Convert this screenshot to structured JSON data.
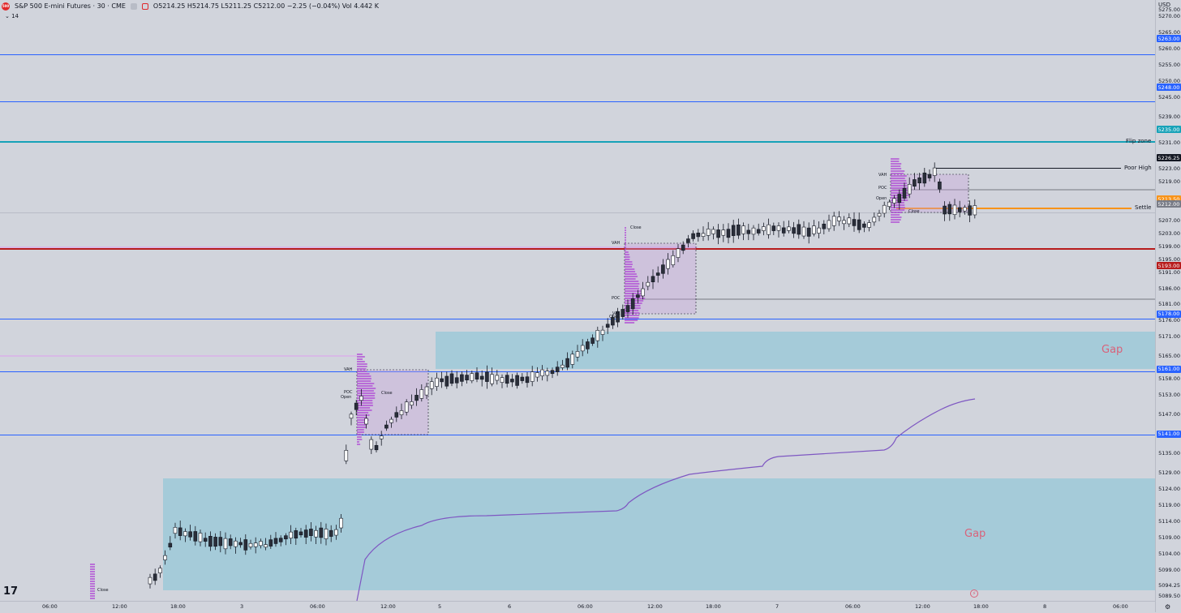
{
  "header": {
    "logo_text": "500",
    "symbol": "S&P 500 E-mini Futures · 30 · CME",
    "ohlc": "O5214.25  H5214.75  L5211.25  C5212.00  −2.25 (−0.04%)  Vol 4.442 K",
    "indicator": "⌄ 14"
  },
  "price_axis": {
    "currency": "USD",
    "ticks": [
      "5275.00",
      "5270.00",
      "5265.00",
      "5260.00",
      "5255.00",
      "5250.00",
      "5245.00",
      "5239.00",
      "5235.00",
      "5231.00",
      "5223.00",
      "5219.00",
      "5207.00",
      "5203.00",
      "5199.00",
      "5195.00",
      "5191.00",
      "5186.00",
      "5181.00",
      "5176.00",
      "5171.00",
      "5165.00",
      "5158.00",
      "5153.00",
      "5147.00",
      "5141.00",
      "5135.00",
      "5129.00",
      "5124.00",
      "5119.00",
      "5114.00",
      "5109.00",
      "5104.00",
      "5099.00",
      "5094.25",
      "5089.50"
    ],
    "tags": [
      {
        "text": "5263.00",
        "color": "#2962ff"
      },
      {
        "text": "5248.00",
        "color": "#2962ff"
      },
      {
        "text": "5235.00",
        "color": "#17a2b8"
      },
      {
        "text": "5226.25",
        "color": "#131722"
      },
      {
        "text": "5213.50",
        "color": "#f7931a"
      },
      {
        "text": "5212.00",
        "color": "#787b86"
      },
      {
        "text": "5193.00",
        "color": "#b71c1c"
      },
      {
        "text": "5178.00",
        "color": "#2962ff"
      },
      {
        "text": "5161.00",
        "color": "#2962ff"
      },
      {
        "text": "5141.00",
        "color": "#2962ff"
      }
    ]
  },
  "time_axis": {
    "ticks": [
      "06:00",
      "12:00",
      "18:00",
      "3",
      "06:00",
      "12:00",
      "5",
      "6",
      "06:00",
      "12:00",
      "18:00",
      "7",
      "06:00",
      "12:00",
      "18:00",
      "8",
      "06:00"
    ]
  },
  "levels": {
    "flip_zone": "Flip zone",
    "poor_high": "Poor High",
    "settle": "Settle"
  },
  "profile_labels": {
    "vah": "VAH",
    "poc": "POC",
    "val": "VAL",
    "open": "Open",
    "close": "Close"
  },
  "gaps": {
    "upper": "Gap",
    "lower": "Gap"
  },
  "colors": {
    "background": "#d1d4dc",
    "level_blue": "#2962ff",
    "flip_zone": "#17a2b8",
    "red_level": "#b71c1c",
    "settle": "#f7931a",
    "profile": "#9c27b0",
    "vwap": "#7e57c2",
    "gap_fill": "#82c3d7"
  },
  "icons": {
    "tradingview_logo": "tv-logo-icon",
    "settings": "gear-icon",
    "alert": "bolt-icon"
  },
  "chart_data": {
    "type": "line",
    "title": "",
    "xlabel": "",
    "ylabel": "",
    "ylim": [
      5089.5,
      5275
    ],
    "x": [
      "2",
      "3",
      "4",
      "5",
      "6",
      "7"
    ],
    "series": [
      {
        "values": [
          5105,
          5109,
          5162,
          5163,
          5195,
          5212
        ]
      }
    ]
  }
}
